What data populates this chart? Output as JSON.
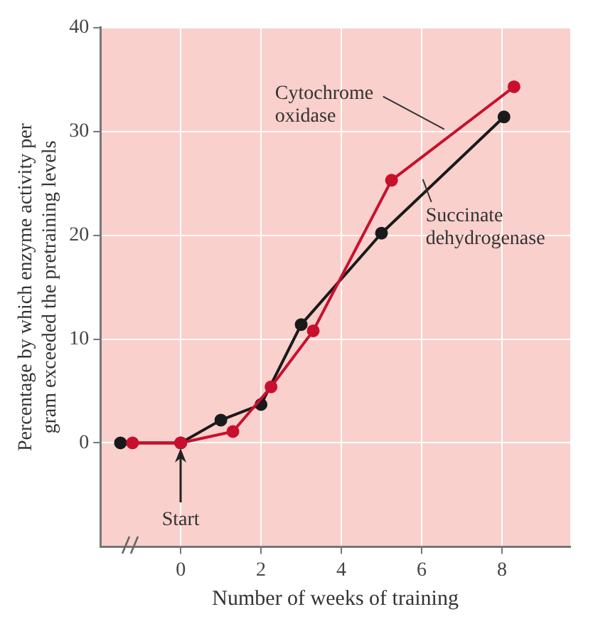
{
  "chart_data": {
    "type": "line",
    "xlabel": "Number of weeks of training",
    "ylabel": "Percentage by which enzyme activity per\ngram exceeded the pretraining levels",
    "xlim": [
      -2,
      9.7
    ],
    "xticks": [
      0,
      2,
      4,
      6,
      8
    ],
    "ylim": [
      -10,
      40
    ],
    "yticks": [
      0,
      10,
      20,
      30,
      40
    ],
    "grid": true,
    "legend": false,
    "marker": "circle",
    "line_style": "solid",
    "series": [
      {
        "name": "Cytochrome oxidase",
        "color": "#c8102e",
        "x": [
          -1.2,
          0,
          1.3,
          2.25,
          3.3,
          5.25,
          8.3
        ],
        "values": [
          0,
          0,
          1.1,
          5.4,
          10.8,
          25.3,
          34.3
        ]
      },
      {
        "name": "Succinate dehydrogenase",
        "color": "#1a1a1a",
        "x": [
          -1.5,
          0,
          1,
          2,
          3,
          5,
          8.05
        ],
        "values": [
          0,
          0,
          2.2,
          3.7,
          11.4,
          20.2,
          31.4
        ]
      }
    ],
    "annotations": [
      "Start"
    ]
  }
}
